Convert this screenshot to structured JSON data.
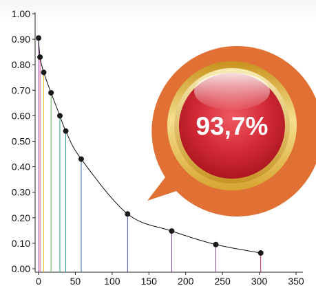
{
  "chart_data": {
    "type": "line",
    "title": "",
    "xlabel": "",
    "ylabel": "",
    "x": [
      0,
      2,
      7,
      17,
      29,
      37,
      58,
      121,
      181,
      241,
      302
    ],
    "y": [
      0.905,
      0.83,
      0.77,
      0.69,
      0.6,
      0.54,
      0.43,
      0.215,
      0.148,
      0.095,
      0.062
    ],
    "xlim": [
      0,
      350
    ],
    "ylim": [
      0,
      1.0
    ],
    "x_ticks": [
      "0",
      "50",
      "100",
      "150",
      "200",
      "250",
      "300",
      "350"
    ],
    "y_ticks": [
      "0.00",
      "0.10",
      "0.20",
      "0.30",
      "0.40",
      "0.50",
      "0.60",
      "0.70",
      "0.80",
      "0.90",
      "1.00"
    ],
    "stem_colors": [
      "#9b59b6",
      "#e84393",
      "#e2c12b",
      "#56b84e",
      "#2aa37a",
      "#1a9a9a",
      "#2471b8",
      "#3a4aa8",
      "#7a3ca8",
      "#9c3aa8",
      "#b0306a"
    ],
    "grid": false,
    "legend": "none"
  },
  "badge": {
    "label": "93,7%",
    "ring_color": "#e07033",
    "gold_color": "#d9ad3c",
    "center_color": "#d8293a"
  }
}
